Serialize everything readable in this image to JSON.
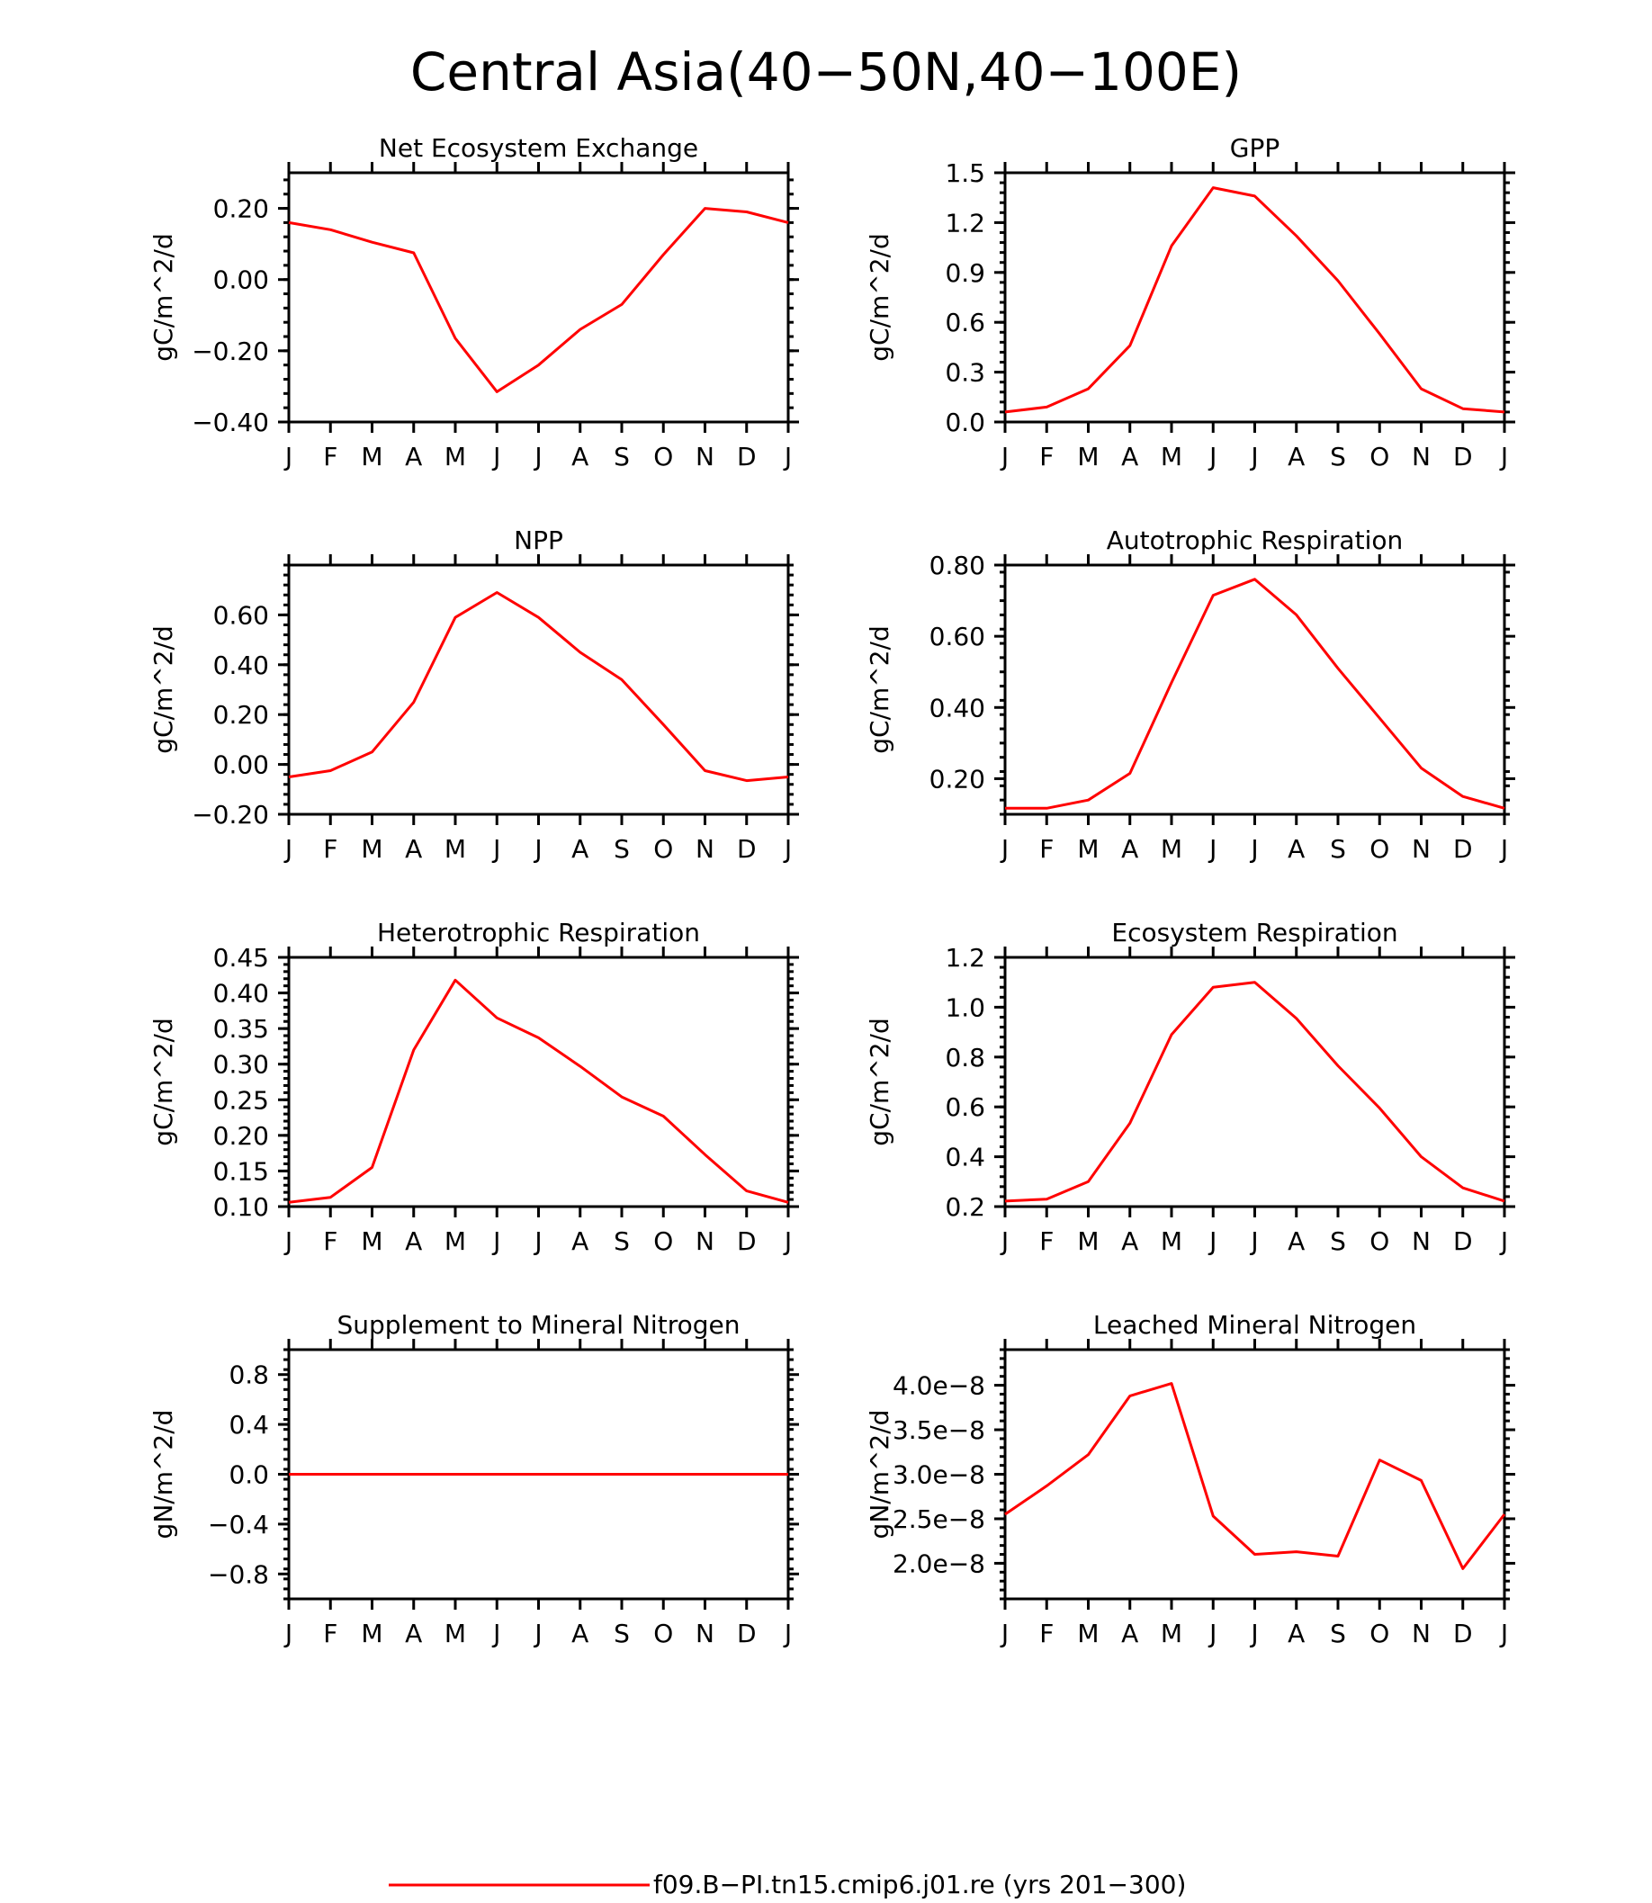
{
  "figure": {
    "title": "Central Asia(40−50N,40−100E)",
    "series_color": "#ff0000",
    "legend": {
      "label": "f09.B−PI.tn15.cmip6.j01.re (yrs 201−300)"
    }
  },
  "chart_data": [
    {
      "type": "line",
      "title": "Net Ecosystem Exchange",
      "ylabel": "gC/m^2/d",
      "categories": [
        "J",
        "F",
        "M",
        "A",
        "M",
        "J",
        "J",
        "A",
        "S",
        "O",
        "N",
        "D",
        "J"
      ],
      "ylim": [
        -0.4,
        0.3
      ],
      "yticks": [
        -0.4,
        -0.2,
        0.0,
        0.2
      ],
      "yticklabels": [
        "−0.40",
        "−0.20",
        "0.00",
        "0.20"
      ],
      "series": [
        {
          "values": [
            0.16,
            0.14,
            0.105,
            0.075,
            -0.165,
            -0.315,
            -0.24,
            -0.14,
            -0.07,
            0.07,
            0.2,
            0.19,
            0.16
          ]
        }
      ]
    },
    {
      "type": "line",
      "title": "GPP",
      "ylabel": "gC/m^2/d",
      "categories": [
        "J",
        "F",
        "M",
        "A",
        "M",
        "J",
        "J",
        "A",
        "S",
        "O",
        "N",
        "D",
        "J"
      ],
      "ylim": [
        0,
        1.5
      ],
      "yticks": [
        0.0,
        0.3,
        0.6,
        0.9,
        1.2,
        1.5
      ],
      "yticklabels": [
        "0.0",
        "0.3",
        "0.6",
        "0.9",
        "1.2",
        "1.5"
      ],
      "series": [
        {
          "values": [
            0.06,
            0.09,
            0.2,
            0.46,
            1.06,
            1.41,
            1.36,
            1.12,
            0.85,
            0.53,
            0.2,
            0.08,
            0.06
          ]
        }
      ]
    },
    {
      "type": "line",
      "title": "NPP",
      "ylabel": "gC/m^2/d",
      "categories": [
        "J",
        "F",
        "M",
        "A",
        "M",
        "J",
        "J",
        "A",
        "S",
        "O",
        "N",
        "D",
        "J"
      ],
      "ylim": [
        -0.2,
        0.8
      ],
      "yticks": [
        -0.2,
        0.0,
        0.2,
        0.4,
        0.6
      ],
      "yticklabels": [
        "−0.20",
        "0.00",
        "0.20",
        "0.40",
        "0.60"
      ],
      "series": [
        {
          "values": [
            -0.05,
            -0.025,
            0.05,
            0.25,
            0.59,
            0.69,
            0.59,
            0.45,
            0.34,
            0.16,
            -0.025,
            -0.065,
            -0.05
          ]
        }
      ]
    },
    {
      "type": "line",
      "title": "Autotrophic Respiration",
      "ylabel": "gC/m^2/d",
      "categories": [
        "J",
        "F",
        "M",
        "A",
        "M",
        "J",
        "J",
        "A",
        "S",
        "O",
        "N",
        "D",
        "J"
      ],
      "ylim": [
        0.1,
        0.8
      ],
      "yticks": [
        0.2,
        0.4,
        0.6,
        0.8
      ],
      "yticklabels": [
        "0.20",
        "0.40",
        "0.60",
        "0.80"
      ],
      "series": [
        {
          "values": [
            0.117,
            0.117,
            0.14,
            0.215,
            0.47,
            0.715,
            0.76,
            0.66,
            0.51,
            0.37,
            0.23,
            0.15,
            0.117
          ]
        }
      ]
    },
    {
      "type": "line",
      "title": "Heterotrophic Respiration",
      "ylabel": "gC/m^2/d",
      "categories": [
        "J",
        "F",
        "M",
        "A",
        "M",
        "J",
        "J",
        "A",
        "S",
        "O",
        "N",
        "D",
        "J"
      ],
      "ylim": [
        0.1,
        0.45
      ],
      "yticks": [
        0.1,
        0.15,
        0.2,
        0.25,
        0.3,
        0.35,
        0.4,
        0.45
      ],
      "yticklabels": [
        "0.10",
        "0.15",
        "0.20",
        "0.25",
        "0.30",
        "0.35",
        "0.40",
        "0.45"
      ],
      "series": [
        {
          "values": [
            0.106,
            0.113,
            0.155,
            0.32,
            0.418,
            0.365,
            0.337,
            0.297,
            0.254,
            0.227,
            0.173,
            0.122,
            0.106
          ]
        }
      ]
    },
    {
      "type": "line",
      "title": "Ecosystem Respiration",
      "ylabel": "gC/m^2/d",
      "categories": [
        "J",
        "F",
        "M",
        "A",
        "M",
        "J",
        "J",
        "A",
        "S",
        "O",
        "N",
        "D",
        "J"
      ],
      "ylim": [
        0.2,
        1.2
      ],
      "yticks": [
        0.2,
        0.4,
        0.6,
        0.8,
        1.0,
        1.2
      ],
      "yticklabels": [
        "0.2",
        "0.4",
        "0.6",
        "0.8",
        "1.0",
        "1.2"
      ],
      "series": [
        {
          "values": [
            0.222,
            0.23,
            0.3,
            0.535,
            0.89,
            1.08,
            1.1,
            0.955,
            0.765,
            0.595,
            0.4,
            0.275,
            0.222
          ]
        }
      ]
    },
    {
      "type": "line",
      "title": "Supplement to Mineral Nitrogen",
      "ylabel": "gN/m^2/d",
      "categories": [
        "J",
        "F",
        "M",
        "A",
        "M",
        "J",
        "J",
        "A",
        "S",
        "O",
        "N",
        "D",
        "J"
      ],
      "ylim": [
        -1.0,
        1.0
      ],
      "yticks": [
        -0.8,
        -0.4,
        0.0,
        0.4,
        0.8
      ],
      "yticklabels": [
        "−0.8",
        "−0.4",
        "0.0",
        "0.4",
        "0.8"
      ],
      "series": [
        {
          "values": [
            0,
            0,
            0,
            0,
            0,
            0,
            0,
            0,
            0,
            0,
            0,
            0,
            0
          ]
        }
      ]
    },
    {
      "type": "line",
      "title": "Leached Mineral Nitrogen",
      "ylabel": "gN/m^2/d",
      "categories": [
        "J",
        "F",
        "M",
        "A",
        "M",
        "J",
        "J",
        "A",
        "S",
        "O",
        "N",
        "D",
        "J"
      ],
      "ylim": [
        1.6e-08,
        4.4e-08
      ],
      "yticks": [
        2e-08,
        2.5e-08,
        3e-08,
        3.5e-08,
        4e-08
      ],
      "yticklabels": [
        "2.0e−8",
        "2.5e−8",
        "3.0e−8",
        "3.5e−8",
        "4.0e−8"
      ],
      "series": [
        {
          "values": [
            2.55e-08,
            2.87e-08,
            3.22e-08,
            3.88e-08,
            4.02e-08,
            2.53e-08,
            2.1e-08,
            2.13e-08,
            2.08e-08,
            3.16e-08,
            2.93e-08,
            1.94e-08,
            2.55e-08
          ]
        }
      ]
    }
  ]
}
